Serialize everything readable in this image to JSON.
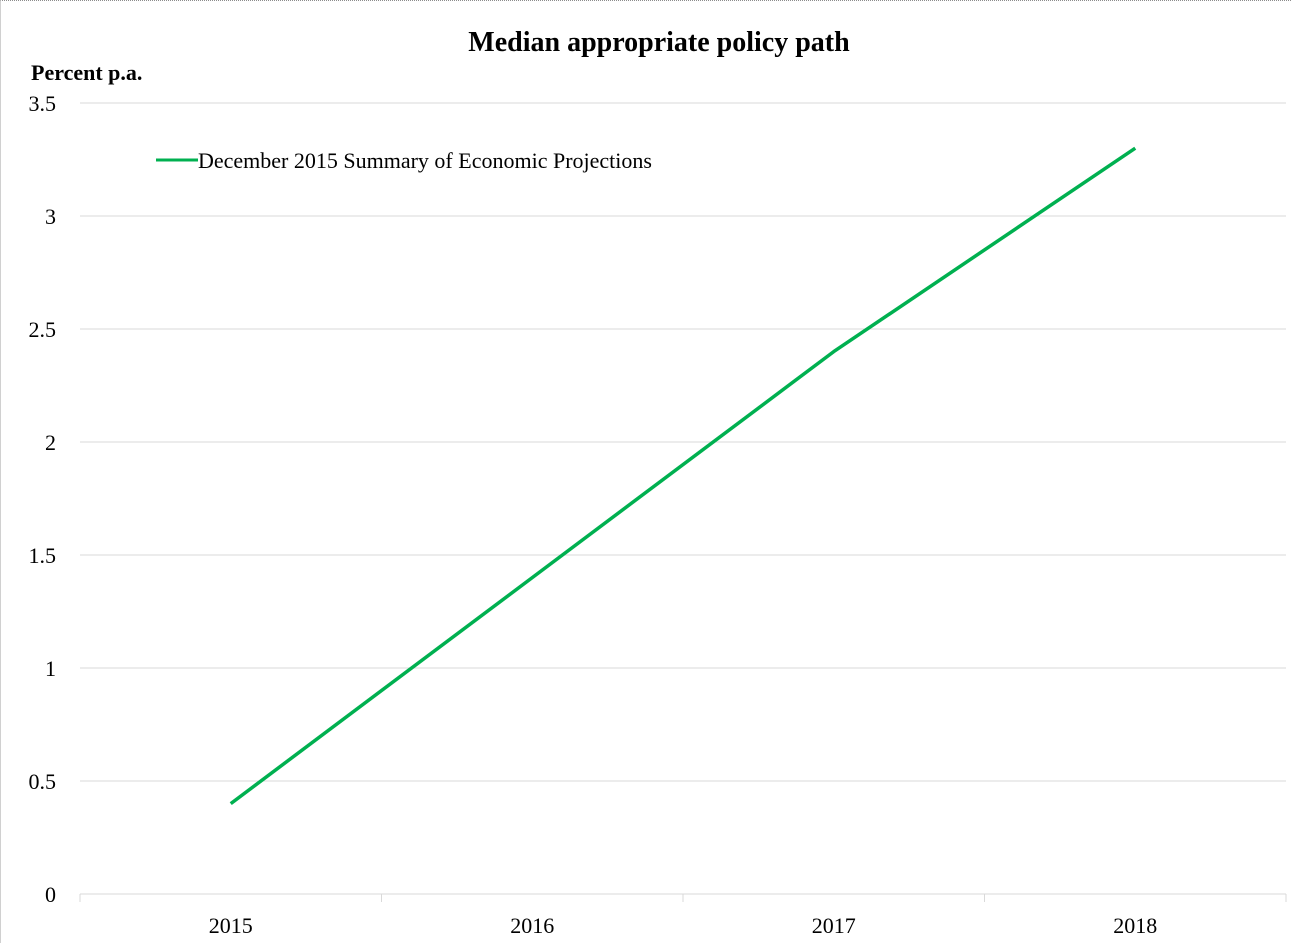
{
  "chart_data": {
    "type": "line",
    "title": "Median appropriate policy path",
    "ylabel": "Percent p.a.",
    "xlabel": "",
    "categories": [
      "2015",
      "2016",
      "2017",
      "2018"
    ],
    "series": [
      {
        "name": "December 2015 Summary of Economic Projections",
        "color": "#00b050",
        "values": [
          0.4,
          1.4,
          2.4,
          3.3
        ]
      }
    ],
    "ylim": [
      0,
      3.5
    ],
    "yticks": [
      "0",
      "0.5",
      "1",
      "1.5",
      "2",
      "2.5",
      "3",
      "3.5"
    ],
    "grid": true,
    "legend_position": "top-left"
  }
}
